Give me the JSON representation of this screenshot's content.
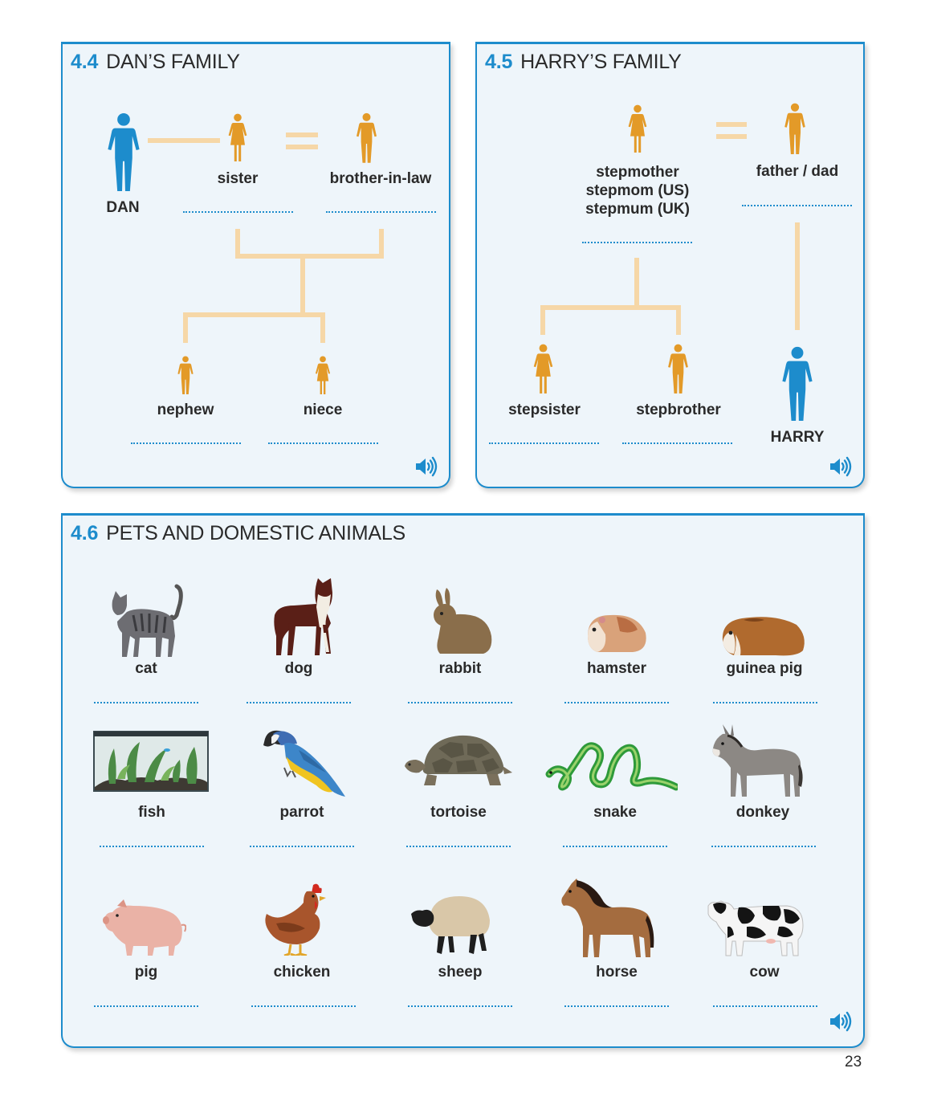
{
  "sections": {
    "dans_family": {
      "number": "4.4",
      "title": "DAN’S FAMILY",
      "people": {
        "dan": "DAN",
        "sister": "sister",
        "brother_in_law": "brother-in-law",
        "nephew": "nephew",
        "niece": "niece"
      }
    },
    "harrys_family": {
      "number": "4.5",
      "title": "HARRY’S FAMILY",
      "people": {
        "stepmother": "stepmother\nstepmom (US)\nstepmum (UK)",
        "father": "father / dad",
        "stepsister": "stepsister",
        "stepbrother": "stepbrother",
        "harry": "HARRY"
      }
    },
    "pets": {
      "number": "4.6",
      "title": "PETS AND DOMESTIC ANIMALS",
      "animals": [
        "cat",
        "dog",
        "rabbit",
        "hamster",
        "guinea pig",
        "fish",
        "parrot",
        "tortoise",
        "snake",
        "donkey",
        "pig",
        "chicken",
        "sheep",
        "horse",
        "cow"
      ]
    }
  },
  "icons": {
    "audio": "speaker-icon",
    "person": "person-icon"
  },
  "colors": {
    "accent_blue": "#1d8ccc",
    "person_orange": "#e39a28",
    "connector_beige": "#f6d7a7",
    "panel_bg": "#eef5fa"
  },
  "page_number": "23"
}
